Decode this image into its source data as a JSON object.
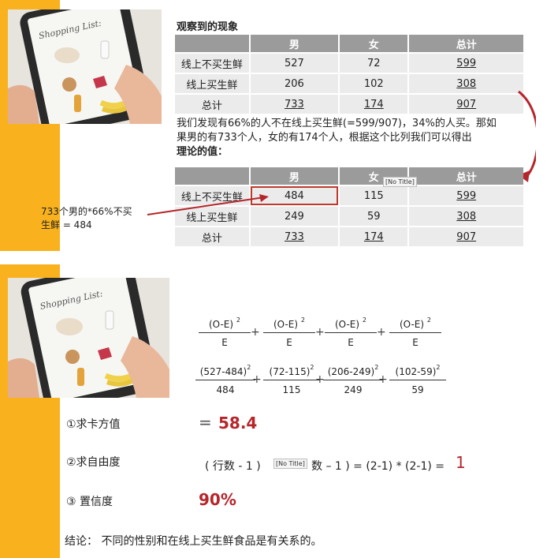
{
  "slide1": {
    "heading": "观察到的现象",
    "observed_table": {
      "headers": [
        "",
        "男",
        "女",
        "总计"
      ],
      "rows": [
        [
          "线上不买生鲜",
          "527",
          "72",
          "599"
        ],
        [
          "线上买生鲜",
          "206",
          "102",
          "308"
        ],
        [
          "总计",
          "733",
          "174",
          "907"
        ]
      ]
    },
    "paragraph_line1": "我们发现有66%的人不在线上买生鲜(=599/907)，34%的人买。那如",
    "paragraph_line2": "果男的有733个人，女的有174个人，根据这个比列我们可以得出",
    "paragraph_bold": "理论的值：",
    "expected_table": {
      "headers": [
        "",
        "男",
        "女",
        "总计"
      ],
      "rows": [
        [
          "线上不买生鲜",
          "484",
          "115",
          "599"
        ],
        [
          "线上买生鲜",
          "249",
          "59",
          "308"
        ],
        [
          "总计",
          "733",
          "174",
          "907"
        ]
      ]
    },
    "tooltip": "[No Title]",
    "annotation_line1": "733个男的*66%不买",
    "annotation_line2": "生鲜 = 484",
    "photo_text": "Shopping List:",
    "accent_color": "#f9b21d",
    "arrow_color": "#b5262b"
  },
  "slide2": {
    "photo_text": "Shopping List:",
    "formula_generic": [
      {
        "num": "(O-E)",
        "exp": "2",
        "den": "E"
      },
      {
        "num": "(O-E)",
        "exp": "2",
        "den": "E"
      },
      {
        "num": "(O-E)",
        "exp": "2",
        "den": "E"
      },
      {
        "num": "(O-E)",
        "exp": "2",
        "den": "E"
      }
    ],
    "formula_values": [
      {
        "num": "(527-484)",
        "exp": "2",
        "den": "484"
      },
      {
        "num": "(72-115)",
        "exp": "2",
        "den": "115"
      },
      {
        "num": "(206-249)",
        "exp": "2",
        "den": "249"
      },
      {
        "num": "(102-59)",
        "exp": "2",
        "den": "59"
      }
    ],
    "plus": "+",
    "step1_label": "①求卡方值",
    "step1_eq": "=",
    "step1_value": "58.4",
    "step2_label": "②求自由度",
    "step2_formula_a": "( 行数 - 1 )",
    "step2_tooltip": "[No Title]",
    "step2_formula_b": "数 – 1 ) = (2-1) * (2-1)  =",
    "step2_value": "1",
    "step3_label": "③ 置信度",
    "step3_value": "90%",
    "conclusion": "结论： 不同的性别和在线上买生鲜食品是有关系的。"
  }
}
